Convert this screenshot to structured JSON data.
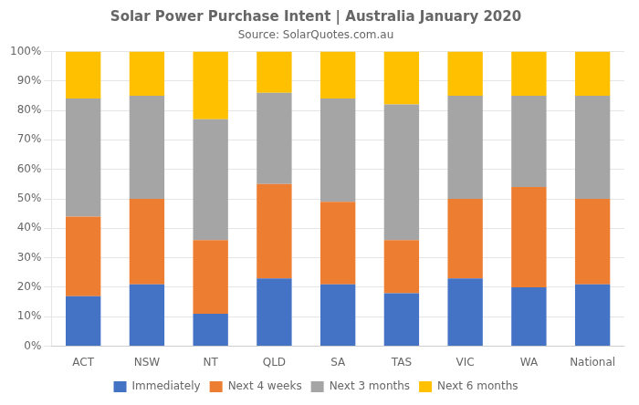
{
  "chart_data": {
    "type": "bar",
    "title": "Solar Power Purchase Intent | Australia January 2020",
    "subtitle": "Source: SolarQuotes.com.au",
    "categories": [
      "ACT",
      "NSW",
      "NT",
      "QLD",
      "SA",
      "TAS",
      "VIC",
      "WA",
      "National"
    ],
    "series": [
      {
        "name": "Immediately",
        "color": "#4472C4",
        "values": [
          17,
          21,
          11,
          23,
          21,
          18,
          23,
          20,
          21
        ]
      },
      {
        "name": "Next 4 weeks",
        "color": "#ED7D31",
        "values": [
          27,
          29,
          25,
          32,
          28,
          18,
          27,
          34,
          29
        ]
      },
      {
        "name": "Next 3 months",
        "color": "#A5A5A5",
        "values": [
          40,
          35,
          41,
          31,
          35,
          46,
          35,
          31,
          35
        ]
      },
      {
        "name": "Next 6 months",
        "color": "#FFC000",
        "values": [
          16,
          15,
          23,
          14,
          16,
          18,
          15,
          15,
          15
        ]
      }
    ],
    "stacked": true,
    "ylim": [
      0,
      100
    ],
    "yticks": [
      {
        "value": 0,
        "label": "0%"
      },
      {
        "value": 10,
        "label": "10%"
      },
      {
        "value": 20,
        "label": "20%"
      },
      {
        "value": 30,
        "label": "30%"
      },
      {
        "value": 40,
        "label": "40%"
      },
      {
        "value": 50,
        "label": "50%"
      },
      {
        "value": 60,
        "label": "60%"
      },
      {
        "value": 70,
        "label": "70%"
      },
      {
        "value": 80,
        "label": "80%"
      },
      {
        "value": 90,
        "label": "90%"
      },
      {
        "value": 100,
        "label": "100%"
      }
    ],
    "grid": true,
    "legend": "bottom"
  }
}
